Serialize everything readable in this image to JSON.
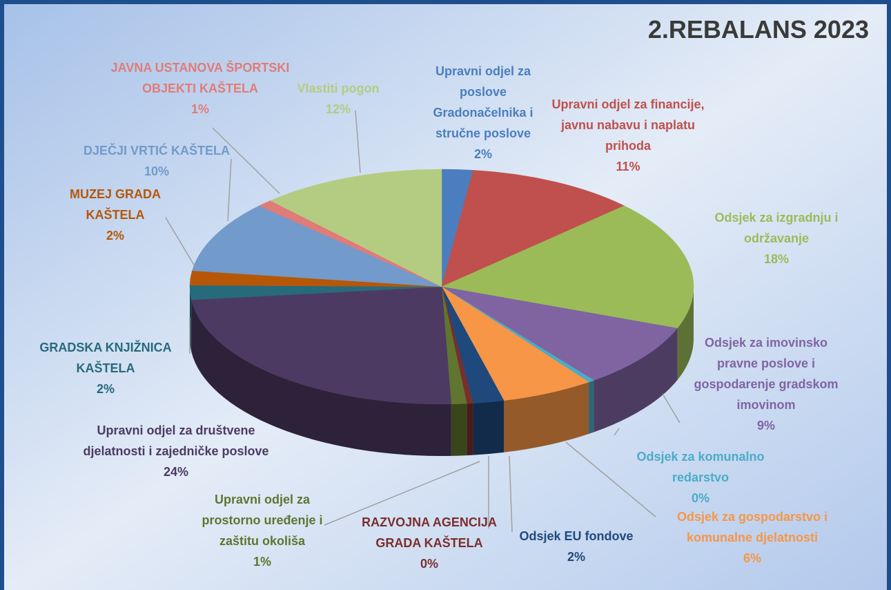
{
  "chart_data": {
    "type": "pie",
    "title": "2.REBALANS 2023",
    "categories": [
      "Upravni odjel za poslove Gradonačelnika i stručne poslove",
      "Upravni odjel za financije, javnu nabavu i naplatu prihoda",
      "Odsjek za izgradnju i održavanje",
      "Odsjek za imovinsko pravne poslove i gospodarenje gradskom imovinom",
      "Odsjek za komunalno redarstvo",
      "Odsjek za gospodarstvo i komunalne djelatnosti",
      "Odsjek  EU fondove",
      "RAZVOJNA AGENCIJA GRADA KAŠTELA",
      "Upravni odjel za prostorno uređenje i zaštitu okoliša",
      "Upravni odjel za društvene djelatnosti i zajedničke poslove",
      "GRADSKA KNJIŽNICA KAŠTELA",
      "MUZEJ GRADA KAŠTELA",
      "DJEČJI VRTIĆ KAŠTELA",
      "JAVNA USTANOVA ŠPORTSKI OBJEKTI KAŠTELA",
      "Vlastiti pogon"
    ],
    "values": [
      2,
      11,
      18,
      9,
      0.4,
      6,
      2,
      0.4,
      1,
      24,
      2,
      2,
      10,
      1,
      12
    ],
    "value_labels": [
      "2%",
      "11%",
      "18%",
      "9%",
      "0%",
      "6%",
      "2%",
      "0%",
      "1%",
      "24%",
      "2%",
      "2%",
      "10%",
      "1%",
      "12%"
    ],
    "colors": [
      "#4a7ebf",
      "#c0504d",
      "#9bbb59",
      "#8064a2",
      "#4bacc6",
      "#f79646",
      "#1f497d",
      "#7a2e2c",
      "#5f7530",
      "#4c3a62",
      "#276a7c",
      "#b65708",
      "#729aca",
      "#e07c78",
      "#b4cc82"
    ]
  }
}
